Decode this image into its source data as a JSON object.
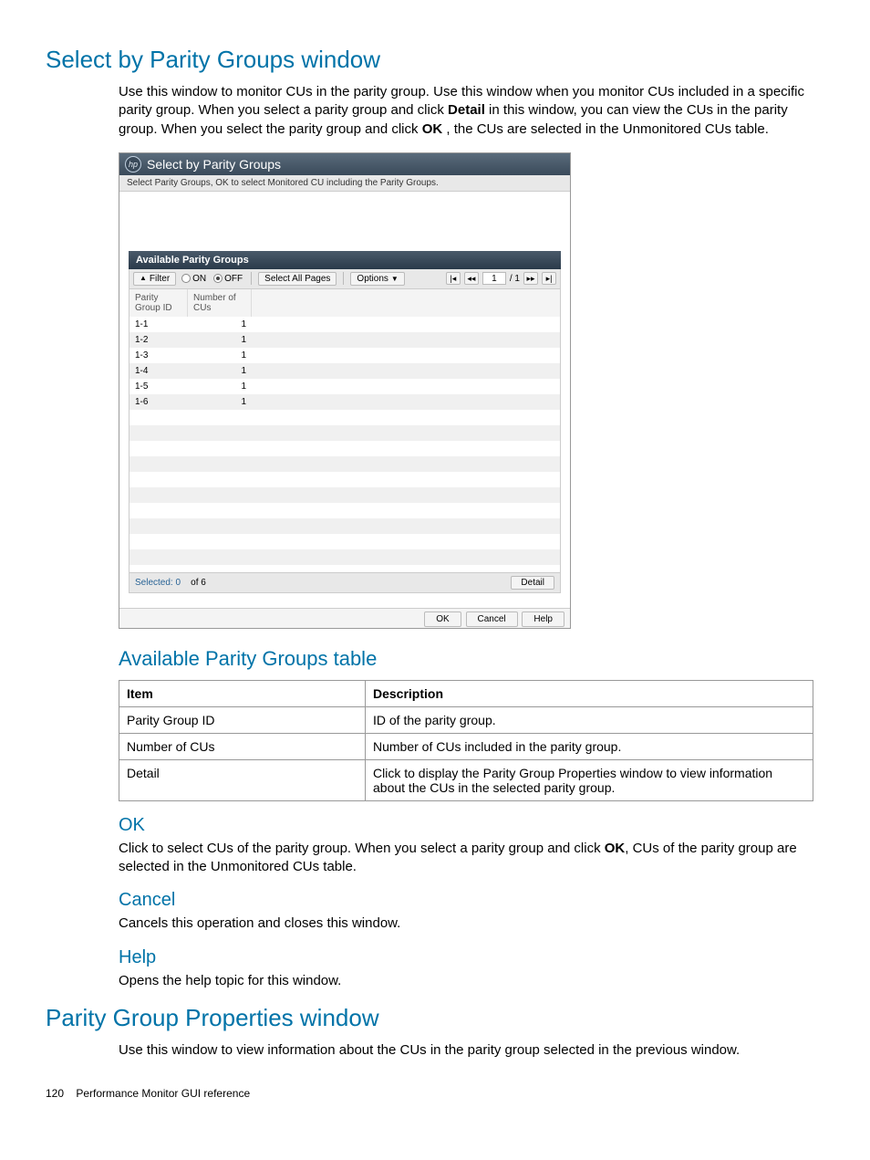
{
  "titles": {
    "h1a": "Select by Parity Groups window",
    "h1b": "Parity Group Properties window",
    "h2_table": "Available Parity Groups table",
    "h3_ok": "OK",
    "h3_cancel": "Cancel",
    "h3_help": "Help"
  },
  "paragraphs": {
    "p1a": "Use this window to monitor CUs in the parity group. Use this window when you monitor CUs included in a specific parity group. When you select a parity group and click ",
    "p1b": "Detail",
    "p1c": " in this window, you can view the CUs in the parity group. When you select the parity group and click ",
    "p1d": "OK",
    "p1e": " , the CUs are selected in the Unmonitored CUs table.",
    "p_ok_a": "Click to select CUs of the parity group. When you select a parity group and click ",
    "p_ok_b": "OK",
    "p_ok_c": ", CUs of the parity group are selected in the Unmonitored CUs table.",
    "p_cancel": "Cancels this operation and closes this window.",
    "p_help": "Opens the help topic for this window.",
    "p2": "Use this window to view information about the CUs in the parity group selected in the previous window."
  },
  "app": {
    "title": "Select by Parity Groups",
    "sub": "Select Parity Groups, OK to select Monitored CU including the Parity Groups.",
    "section": "Available Parity Groups",
    "toolbar": {
      "filter": "Filter",
      "on": "ON",
      "off": "OFF",
      "select_all": "Select All Pages",
      "options": "Options",
      "page_current": "1",
      "page_sep": "/ 1"
    },
    "columns": {
      "c1": "Parity Group ID",
      "c2": "Number of CUs"
    },
    "rows": [
      {
        "id": "1-1",
        "n": "1"
      },
      {
        "id": "1-2",
        "n": "1"
      },
      {
        "id": "1-3",
        "n": "1"
      },
      {
        "id": "1-4",
        "n": "1"
      },
      {
        "id": "1-5",
        "n": "1"
      },
      {
        "id": "1-6",
        "n": "1"
      }
    ],
    "blank_rows": 10,
    "footer": {
      "selected_label": "Selected:",
      "selected_n": "0",
      "of": "of",
      "total": "6",
      "detail": "Detail"
    },
    "dlg": {
      "ok": "OK",
      "cancel": "Cancel",
      "help": "Help"
    },
    "colors": {
      "title_bar_top": "#5a6b7b",
      "title_bar_bottom": "#3a4a5a",
      "section_top": "#4a5a6a",
      "section_bottom": "#2a3a4a",
      "toolbar_bg": "#e8e8e8",
      "row_alt_bg": "#f0f0f0",
      "border": "#cccccc"
    }
  },
  "def_table": {
    "head": {
      "item": "Item",
      "desc": "Description"
    },
    "rows": [
      {
        "item": "Parity Group ID",
        "desc": "ID of the parity group."
      },
      {
        "item": "Number of CUs",
        "desc": "Number of CUs included in the parity group."
      },
      {
        "item": "Detail",
        "desc": "Click to display the Parity Group Properties window to view information about the CUs in the selected parity group."
      }
    ]
  },
  "footer": {
    "page": "120",
    "label": "Performance Monitor GUI reference"
  }
}
